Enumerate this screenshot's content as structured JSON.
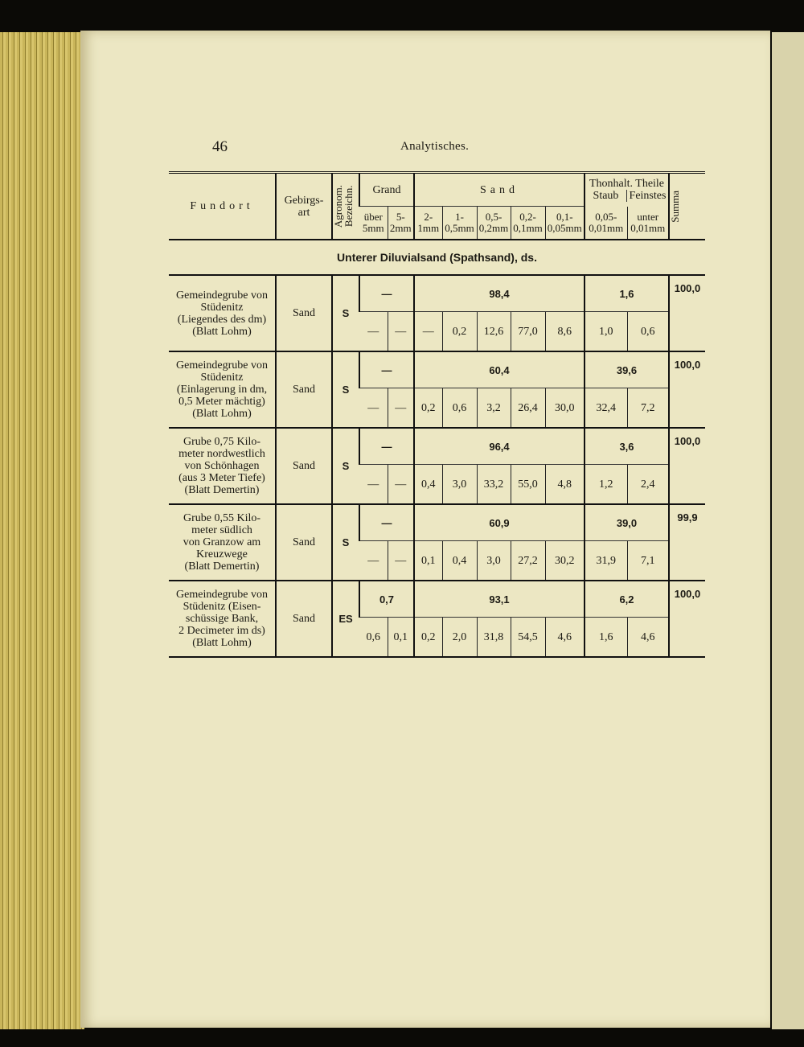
{
  "page_number": "46",
  "running_head": "Analytisches.",
  "headers": {
    "fundort": "Fundort",
    "gebirgsart": "Gebirgs-\nart",
    "agronom": "Agronom.\nBezeichn.",
    "grand": "Grand",
    "sand": "Sand",
    "thon": "Thonhalt. Theile",
    "staub": "Staub",
    "feinstes": "Feinstes",
    "summa": "Summa",
    "sub": [
      "über 5mm",
      "5- 2mm",
      "2- 1mm",
      "1- 0,5mm",
      "0,5- 0,2mm",
      "0,2- 0,1mm",
      "0,1- 0,05mm",
      "0,05- 0,01mm",
      "unter 0,01mm"
    ]
  },
  "section_title": "Unterer Diluvialsand (Spathsand), ds.",
  "records": [
    {
      "fundort": [
        "Gemeindegrube von",
        "Stüdenitz",
        "(Liegendes des dm)",
        "(Blatt Lohm)"
      ],
      "gebirgsart": "Sand",
      "agronom": "S",
      "grand_total": "—",
      "sand_total": "98,4",
      "thon_total": "1,6",
      "summa": "100,0",
      "details": [
        "—",
        "—",
        "—",
        "0,2",
        "12,6",
        "77,0",
        "8,6",
        "1,0",
        "0,6"
      ]
    },
    {
      "fundort": [
        "Gemeindegrube von",
        "Stüdenitz",
        "(Einlagerung in dm,",
        "0,5 Meter mächtig)",
        "(Blatt Lohm)"
      ],
      "gebirgsart": "Sand",
      "agronom": "S",
      "grand_total": "—",
      "sand_total": "60,4",
      "thon_total": "39,6",
      "summa": "100,0",
      "details": [
        "—",
        "—",
        "0,2",
        "0,6",
        "3,2",
        "26,4",
        "30,0",
        "32,4",
        "7,2"
      ]
    },
    {
      "fundort": [
        "Grube 0,75 Kilo-",
        "meter nordwestlich",
        "von Schönhagen",
        "(aus 3 Meter Tiefe)",
        "(Blatt Demertin)"
      ],
      "gebirgsart": "Sand",
      "agronom": "S",
      "grand_total": "—",
      "sand_total": "96,4",
      "thon_total": "3,6",
      "summa": "100,0",
      "details": [
        "—",
        "—",
        "0,4",
        "3,0",
        "33,2",
        "55,0",
        "4,8",
        "1,2",
        "2,4"
      ]
    },
    {
      "fundort": [
        "Grube 0,55 Kilo-",
        "meter südlich",
        "von Granzow am",
        "Kreuzwege",
        "(Blatt Demertin)"
      ],
      "gebirgsart": "Sand",
      "agronom": "S",
      "grand_total": "—",
      "sand_total": "60,9",
      "thon_total": "39,0",
      "summa": "99,9",
      "details": [
        "—",
        "—",
        "0,1",
        "0,4",
        "3,0",
        "27,2",
        "30,2",
        "31,9",
        "7,1"
      ]
    },
    {
      "fundort": [
        "Gemeindegrube von",
        "Stüdenitz (Eisen-",
        "schüssige Bank,",
        "2 Decimeter im ds)",
        "(Blatt Lohm)"
      ],
      "gebirgsart": "Sand",
      "agronom": "ES",
      "grand_total": "0,7",
      "sand_total": "93,1",
      "thon_total": "6,2",
      "summa": "100,0",
      "details": [
        "0,6",
        "0,1",
        "0,2",
        "2,0",
        "31,8",
        "54,5",
        "4,6",
        "1,6",
        "4,6"
      ]
    }
  ]
}
